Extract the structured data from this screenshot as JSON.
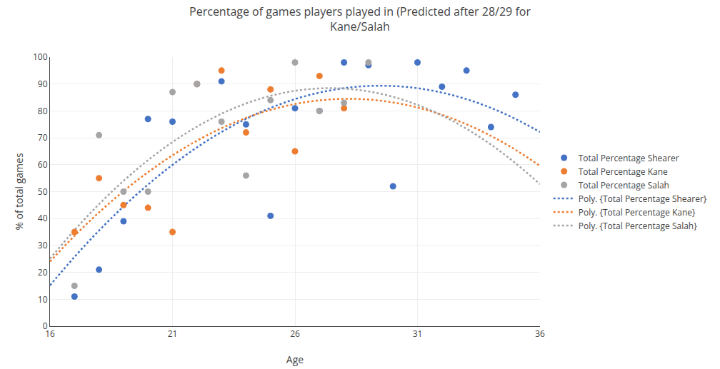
{
  "chart_data": {
    "type": "scatter",
    "title": "Percentage of games players played in (Predicted after 28/29 for\nKane/Salah",
    "xlabel": "Age",
    "ylabel": "% of total games",
    "xlim": [
      16,
      36
    ],
    "ylim": [
      0,
      100
    ],
    "xticks": [
      16,
      21,
      26,
      31,
      36
    ],
    "yticks": [
      0,
      10,
      20,
      30,
      40,
      50,
      60,
      70,
      80,
      90,
      100
    ],
    "grid": true,
    "legend": "right",
    "series": [
      {
        "name": "Total Percentage Shearer",
        "type": "scatter",
        "marker": "circle",
        "color": "#4472C4",
        "x": [
          17,
          18,
          19,
          20,
          21,
          22,
          23,
          24,
          25,
          26,
          27,
          28,
          29,
          30,
          31,
          32,
          33,
          34,
          35
        ],
        "values": [
          11,
          21,
          39,
          77,
          76,
          90,
          91,
          75,
          41,
          81,
          80,
          98,
          97,
          52,
          98,
          89,
          95,
          74,
          86
        ]
      },
      {
        "name": "Total Percentage Kane",
        "type": "scatter",
        "marker": "circle",
        "color": "#ED7D31",
        "x": [
          17,
          18,
          19,
          20,
          21,
          22,
          23,
          24,
          25,
          26,
          27,
          28
        ],
        "values": [
          35,
          55,
          45,
          44,
          35,
          90,
          95,
          72,
          88,
          65,
          93,
          81
        ]
      },
      {
        "name": "Total Percentage Salah",
        "type": "scatter",
        "marker": "circle",
        "color": "#A5A5A5",
        "x": [
          17,
          18,
          19,
          20,
          21,
          22,
          23,
          24,
          25,
          26,
          27,
          28,
          29
        ],
        "values": [
          15,
          71,
          50,
          50,
          87,
          90,
          76,
          56,
          84,
          98,
          80,
          83,
          98
        ]
      },
      {
        "name": "Poly. {Total Percentage Shearer}",
        "type": "line",
        "line_style": "dotted",
        "color": "#4472C4",
        "x": [
          16,
          17,
          18,
          19,
          20,
          21,
          22,
          23,
          24,
          25,
          26,
          27,
          28,
          29,
          30,
          31,
          32,
          33,
          34,
          35,
          36
        ],
        "values": [
          15.1631,
          25.7489,
          35.5203,
          44.4773,
          52.62,
          59.9482,
          66.4621,
          72.1616,
          77.0467,
          81.1174,
          84.3737,
          86.8156,
          88.4432,
          89.2563,
          89.2551,
          88.4395,
          86.8095,
          84.3651,
          81.1063,
          77.0331,
          72.1455
        ]
      },
      {
        "name": "Poly. {Total Percentage Kane}",
        "type": "line",
        "line_style": "dotted",
        "color": "#ED7D31",
        "x": [
          16,
          17,
          18,
          19,
          20,
          21,
          22,
          23,
          24,
          25,
          26,
          27,
          28,
          29,
          30,
          31,
          32,
          33,
          34,
          35,
          36
        ],
        "values": [
          24.0455,
          33.5659,
          42.2712,
          50.1613,
          57.2363,
          63.496,
          68.9406,
          73.5699,
          77.3841,
          80.3831,
          82.5669,
          83.9356,
          84.489,
          84.2273,
          83.1504,
          81.2583,
          78.551,
          75.0285,
          70.6909,
          65.538,
          59.57
        ]
      },
      {
        "name": "Poly. {Total Percentage Salah}",
        "type": "line",
        "line_style": "dotted",
        "color": "#A5A5A5",
        "x": [
          16,
          17,
          18,
          19,
          20,
          21,
          22,
          23,
          24,
          25,
          26,
          27,
          28,
          29,
          30,
          31,
          32,
          33,
          34,
          35,
          36
        ],
        "values": [
          25.0839,
          35.6923,
          45.3297,
          53.996,
          61.6913,
          68.4156,
          74.1688,
          78.951,
          82.7622,
          85.6024,
          87.4715,
          88.3696,
          88.2967,
          87.2528,
          85.2378,
          82.2518,
          78.2948,
          73.3667,
          67.4676,
          60.5975,
          52.7563
        ]
      }
    ]
  }
}
